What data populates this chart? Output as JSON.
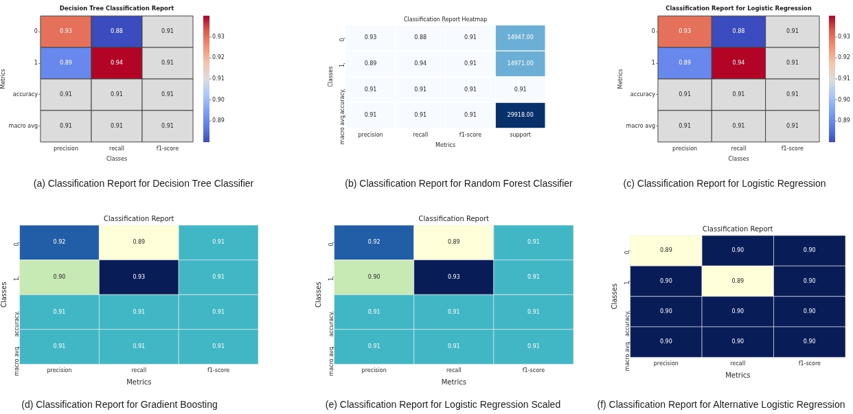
{
  "chart_data": [
    {
      "type": "heatmap",
      "title": "Decision Tree Classification Report",
      "xlabel": "Classes",
      "ylabel": "Metrics",
      "categories": [
        "precision",
        "recall",
        "f1-score"
      ],
      "y_categories": [
        "0",
        "1",
        "accuracy",
        "macro avg"
      ],
      "cells": [
        [
          0.93,
          0.88,
          0.91
        ],
        [
          0.89,
          0.94,
          0.91
        ],
        [
          0.91,
          0.91,
          0.91
        ],
        [
          0.91,
          0.91,
          0.91
        ]
      ],
      "clim": [
        0.88,
        0.94
      ],
      "cticks": [
        0.89,
        {
          "value": 0.9,
          "label": "0.90"
        },
        0.91,
        0.92,
        0.93
      ],
      "annotations": [
        "(a) Classification Report for Decision Tree Classifier"
      ]
    },
    {
      "type": "heatmap",
      "title": "Classification Report Heatmap",
      "xlabel": "Metrics",
      "ylabel": "Classes",
      "categories": [
        "precision",
        "recall",
        "f1-score",
        "support"
      ],
      "y_categories": [
        "0",
        "1",
        "accuracy",
        "macro avg"
      ],
      "cells": [
        [
          0.93,
          0.88,
          0.91,
          14947
        ],
        [
          0.89,
          0.94,
          0.91,
          14971
        ],
        [
          0.91,
          0.91,
          0.91,
          0.91
        ],
        [
          0.91,
          0.91,
          0.91,
          29918
        ]
      ],
      "cell_labels": [
        [
          "0.93",
          "0.88",
          "0.91",
          "14947.00"
        ],
        [
          "0.89",
          "0.94",
          "0.91",
          "14971.00"
        ],
        [
          "0.91",
          "0.91",
          "0.91",
          "0.91"
        ],
        [
          "0.91",
          "0.91",
          "0.91",
          "29918.00"
        ]
      ],
      "annotations": [
        "(b) Classification Report for Random Forest Classifier"
      ]
    },
    {
      "type": "heatmap",
      "title": "Classification Report for Logistic Regression",
      "xlabel": "Classes",
      "ylabel": "Metrics",
      "categories": [
        "precision",
        "recall",
        "f1-score"
      ],
      "y_categories": [
        "0",
        "1",
        "accuracy",
        "macro avg"
      ],
      "cells": [
        [
          0.93,
          0.88,
          0.91
        ],
        [
          0.89,
          0.94,
          0.91
        ],
        [
          0.91,
          0.91,
          0.91
        ],
        [
          0.91,
          0.91,
          0.91
        ]
      ],
      "clim": [
        0.88,
        0.94
      ],
      "cticks": [
        0.89,
        {
          "value": 0.9,
          "label": "0.90"
        },
        0.91,
        0.92,
        0.93
      ],
      "annotations": [
        "(c) Classification Report for Logistic Regression"
      ]
    },
    {
      "type": "heatmap",
      "title": "Classification Report",
      "xlabel": "Metrics",
      "ylabel": "Classes",
      "categories": [
        "precision",
        "recall",
        "f1-score"
      ],
      "y_categories": [
        "0",
        "1",
        "accuracy",
        "macro avg"
      ],
      "cells": [
        [
          0.92,
          0.89,
          0.91
        ],
        [
          0.9,
          0.93,
          0.91
        ],
        [
          0.91,
          0.91,
          0.91
        ],
        [
          0.91,
          0.91,
          0.91
        ]
      ],
      "cell_labels": [
        [
          "0.92",
          "0.89",
          "0.91"
        ],
        [
          "0.90",
          "0.93",
          "0.91"
        ],
        [
          "0.91",
          "0.91",
          "0.91"
        ],
        [
          "0.91",
          "0.91",
          "0.91"
        ]
      ],
      "annotations": [
        "(d) Classification Report for Gradient Boosting"
      ]
    },
    {
      "type": "heatmap",
      "title": "Classification Report",
      "xlabel": "Metrics",
      "ylabel": "Classes",
      "categories": [
        "precision",
        "recall",
        "f1-score"
      ],
      "y_categories": [
        "0",
        "1",
        "accuracy",
        "macro avg"
      ],
      "cells": [
        [
          0.92,
          0.89,
          0.91
        ],
        [
          0.9,
          0.93,
          0.91
        ],
        [
          0.91,
          0.91,
          0.91
        ],
        [
          0.91,
          0.91,
          0.91
        ]
      ],
      "cell_labels": [
        [
          "0.92",
          "0.89",
          "0.91"
        ],
        [
          "0.90",
          "0.93",
          "0.91"
        ],
        [
          "0.91",
          "0.91",
          "0.91"
        ],
        [
          "0.91",
          "0.91",
          "0.91"
        ]
      ],
      "annotations": [
        "(e) Classification Report for Logistic Regression Scaled"
      ]
    },
    {
      "type": "heatmap",
      "title": "Classification Report",
      "xlabel": "Metrics",
      "ylabel": "Classes",
      "categories": [
        "precision",
        "recall",
        "f1-score"
      ],
      "y_categories": [
        "0",
        "1",
        "accuracy",
        "macro avg"
      ],
      "cells": [
        [
          0.89,
          0.9,
          0.9
        ],
        [
          0.9,
          0.89,
          0.9
        ],
        [
          0.9,
          0.9,
          0.9
        ],
        [
          0.9,
          0.9,
          0.9
        ]
      ],
      "cell_labels": [
        [
          "0.89",
          "0.90",
          "0.90"
        ],
        [
          "0.90",
          "0.89",
          "0.90"
        ],
        [
          "0.90",
          "0.90",
          "0.90"
        ],
        [
          "0.90",
          "0.90",
          "0.90"
        ]
      ],
      "annotations": [
        "(f) Classification Report for Alternative Logistic Regression"
      ]
    }
  ]
}
